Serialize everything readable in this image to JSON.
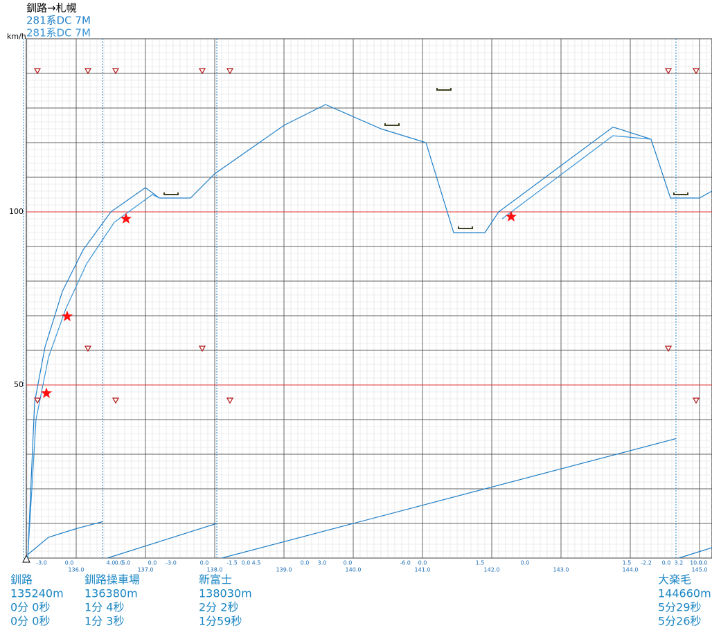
{
  "chart_data": {
    "type": "line",
    "title": "釧路→札幌",
    "y_label": "km/h",
    "xlim": [
      135.28,
      145.18
    ],
    "ylim": [
      0,
      150
    ],
    "xticks": [
      {
        "value": 136,
        "label": "136.0"
      },
      {
        "value": 137,
        "label": "137.0"
      },
      {
        "value": 138,
        "label": "138.0"
      },
      {
        "value": 139,
        "label": "139.0"
      },
      {
        "value": 140,
        "label": "140.0"
      },
      {
        "value": 141,
        "label": "141.0"
      },
      {
        "value": 142,
        "label": "142.0"
      },
      {
        "value": 143,
        "label": "143.0"
      },
      {
        "value": 144,
        "label": "144.0"
      },
      {
        "value": 145,
        "label": "145.0"
      }
    ],
    "yticks": [
      50,
      100
    ],
    "ygrid": [
      0,
      10,
      20,
      30,
      40,
      50,
      60,
      70,
      80,
      90,
      100,
      110,
      120,
      130,
      140,
      150
    ],
    "minor_xstep": 0.1,
    "minor_ystep": 2,
    "series": [
      {
        "name": "281系DC 7M",
        "color": "#1f7fc8",
        "x": [
          135.3,
          135.4,
          135.55,
          135.8,
          136.1,
          136.5,
          137.0,
          137.2,
          137.65,
          138.0,
          139.0,
          139.6,
          140.4,
          141.05,
          141.45,
          141.9,
          142.1,
          143.75,
          144.3,
          144.58,
          145.0,
          145.18
        ],
        "values": [
          0,
          45,
          61,
          77,
          89,
          100,
          107,
          104,
          104,
          111,
          125,
          131,
          124,
          120,
          94,
          94,
          100,
          124.5,
          121,
          104,
          104,
          106
        ]
      },
      {
        "name": "281系DC 7M",
        "color": "#3a95d6",
        "x": [
          135.3,
          135.42,
          135.6,
          135.85,
          136.15,
          136.55,
          137.1,
          137.2,
          141.9,
          142.15,
          143.75,
          144.3
        ],
        "values": [
          0,
          40,
          58,
          72,
          85,
          97,
          105,
          104,
          null,
          98,
          122,
          121
        ]
      },
      {
        "color": "#1f7fc8",
        "x": [
          135.3,
          135.6,
          136.0,
          136.38,
          136.4,
          136.45,
          138.03,
          138.06,
          138.1,
          144.66,
          144.68,
          144.7,
          145.18
        ],
        "values": [
          1,
          6,
          8.5,
          10.5,
          null,
          0,
          10,
          null,
          0,
          34.5,
          null,
          0,
          3
        ]
      }
    ],
    "stars": {
      "color": "#ff1010",
      "x": [
        135.57,
        135.87,
        136.72,
        142.28
      ],
      "values": [
        47.6,
        69.8,
        98,
        98.6
      ]
    },
    "triangles": {
      "color": "#b01010",
      "x": [
        135.44,
        136.17,
        136.57,
        137.82,
        138.22,
        144.55,
        144.95,
        136.17,
        137.82,
        144.55,
        135.44,
        136.57,
        138.22,
        144.95
      ],
      "values": [
        140.8,
        140.8,
        140.8,
        140.8,
        140.8,
        140.8,
        140.8,
        60.6,
        60.6,
        60.6,
        45.6,
        45.6,
        45.6,
        45.6
      ]
    },
    "limits": {
      "color": "#404020",
      "x": [
        137.37,
        140.56,
        141.31,
        141.62,
        144.73
      ],
      "values": [
        105,
        125,
        135.2,
        95.2,
        105
      ]
    },
    "gradients": [
      {
        "km": 135.5,
        "label": "-3.0"
      },
      {
        "km": 135.9,
        "label": "0.0"
      },
      {
        "km": 136.5,
        "label": "4.0"
      },
      {
        "km": 136.62,
        "label": "0.0"
      },
      {
        "km": 136.72,
        "label": "5.0"
      },
      {
        "km": 137.1,
        "label": "0.0"
      },
      {
        "km": 137.37,
        "label": "-3.0"
      },
      {
        "km": 137.85,
        "label": "0.0"
      },
      {
        "km": 138.25,
        "label": "-1.5"
      },
      {
        "km": 138.45,
        "label": "0.0"
      },
      {
        "km": 138.6,
        "label": "4.5"
      },
      {
        "km": 139.3,
        "label": "0.0"
      },
      {
        "km": 139.55,
        "label": "3.0"
      },
      {
        "km": 139.92,
        "label": "0.0"
      },
      {
        "km": 140.75,
        "label": "-6.0"
      },
      {
        "km": 141.0,
        "label": "0.0"
      },
      {
        "km": 141.83,
        "label": "1.5"
      },
      {
        "km": 142.48,
        "label": "0.0"
      },
      {
        "km": 143.95,
        "label": "1.5"
      },
      {
        "km": 144.23,
        "label": "-2.2"
      },
      {
        "km": 144.52,
        "label": "0.0"
      },
      {
        "km": 144.7,
        "label": "3.2"
      },
      {
        "km": 144.95,
        "label": "10.0"
      },
      {
        "km": 145.05,
        "label": "0.0"
      }
    ],
    "stations": [
      {
        "km": 135.24,
        "name": "釧路",
        "distance": "135240m",
        "time1": "0分 0秒",
        "time2": "0分 0秒"
      },
      {
        "km": 136.38,
        "name": "釧路操車場",
        "distance": "136380m",
        "time1": "1分 4秒",
        "time2": "1分 3秒"
      },
      {
        "km": 138.03,
        "name": "新富士",
        "distance": "138030m",
        "time1": "2分 2秒",
        "time2": "1分59秒"
      },
      {
        "km": 144.66,
        "name": "大楽毛",
        "distance": "144660m",
        "time1": "5分29秒",
        "time2": "5分26秒"
      }
    ]
  }
}
